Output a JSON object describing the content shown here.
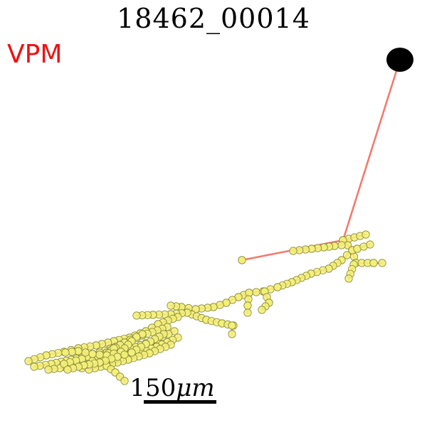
{
  "figure": {
    "title": "18462_00014",
    "region_label": "VPM",
    "scale_bar": {
      "value": "150",
      "unit": "μm"
    }
  },
  "colors": {
    "region_label": "#ee1111",
    "branch": "#f47a6e",
    "node_fill": "#f3f07a",
    "node_stroke": "#8a8a3a",
    "soma": "#000000"
  }
}
